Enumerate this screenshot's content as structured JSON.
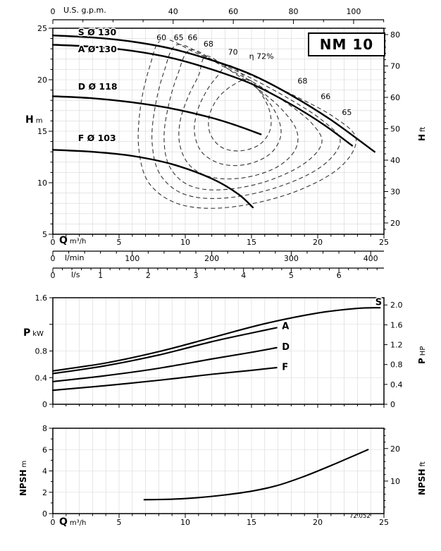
{
  "page": {
    "model": "NM 10",
    "code_note": "72.052"
  },
  "colors": {
    "curve": "#000000",
    "grid": "#d6d6d6",
    "contour": "#333333",
    "frame": "#000000"
  },
  "axis_titles": {
    "top_gpm": "U.S. g.p.m.",
    "h_left": {
      "sym": "H",
      "unit": "m"
    },
    "h_right": {
      "sym": "H",
      "unit": "ft"
    },
    "q_head": {
      "sym": "Q",
      "unit": "m³/h"
    },
    "lmin": "l/min",
    "ls": "l/s",
    "p_left": {
      "sym": "P",
      "unit": "kW"
    },
    "p_right": {
      "sym": "P",
      "unit": "HP"
    },
    "npsh_left": {
      "sym": "NPSH",
      "unit": "m"
    },
    "npsh_right": {
      "sym": "NPSH",
      "unit": "ft"
    },
    "q_npsh": {
      "sym": "Q",
      "unit": "m³/h"
    }
  },
  "chart_data": [
    {
      "id": "head",
      "type": "line",
      "title": "NM 10",
      "x_bottom": {
        "label": "Q m³/h",
        "range": [
          0,
          25
        ],
        "ticks": [
          0,
          5,
          10,
          15,
          20,
          25
        ]
      },
      "x_top": {
        "label": "U.S. g.p.m.",
        "ticks": [
          0,
          40,
          60,
          80,
          100
        ],
        "m3h_per_unit": 0.2271
      },
      "x_lmin": {
        "label": "l/min",
        "ticks": [
          0,
          100,
          200,
          300,
          400
        ],
        "m3h_per_unit": 0.06
      },
      "x_ls": {
        "label": "l/s",
        "ticks": [
          0,
          1,
          2,
          3,
          4,
          5,
          6
        ],
        "m3h_per_unit": 3.6
      },
      "y_left": {
        "label": "H m",
        "range": [
          5,
          25
        ],
        "ticks": [
          5,
          10,
          15,
          20,
          25
        ]
      },
      "y_right": {
        "label": "H ft",
        "ticks": [
          20,
          30,
          40,
          50,
          60,
          70,
          80
        ],
        "m_per_ft": 0.3048
      },
      "series": [
        {
          "name": "S",
          "label": "S Ø 130",
          "label_at": [
            1.9,
            24.6
          ],
          "points": [
            [
              0,
              24.3
            ],
            [
              3,
              24.1
            ],
            [
              6,
              23.7
            ],
            [
              9,
              23.0
            ],
            [
              12,
              21.9
            ],
            [
              15,
              20.5
            ],
            [
              18,
              18.5
            ],
            [
              21,
              16.1
            ],
            [
              24.3,
              13.0
            ]
          ]
        },
        {
          "name": "A",
          "label": "A Ø 130",
          "label_at": [
            1.9,
            22.95
          ],
          "points": [
            [
              0,
              23.4
            ],
            [
              3,
              23.2
            ],
            [
              6,
              22.8
            ],
            [
              9,
              22.1
            ],
            [
              12,
              21.0
            ],
            [
              15,
              19.6
            ],
            [
              18,
              17.6
            ],
            [
              20.5,
              15.6
            ],
            [
              22.6,
              13.6
            ]
          ]
        },
        {
          "name": "D",
          "label": "D Ø 118",
          "label_at": [
            1.9,
            19.3
          ],
          "points": [
            [
              0,
              18.4
            ],
            [
              3,
              18.2
            ],
            [
              6,
              17.8
            ],
            [
              9,
              17.2
            ],
            [
              12,
              16.3
            ],
            [
              14,
              15.5
            ],
            [
              15.7,
              14.7
            ]
          ]
        },
        {
          "name": "F",
          "label": "F Ø 103",
          "label_at": [
            1.9,
            14.3
          ],
          "points": [
            [
              0,
              13.2
            ],
            [
              3,
              13.0
            ],
            [
              6,
              12.6
            ],
            [
              9,
              11.8
            ],
            [
              12,
              10.4
            ],
            [
              14,
              8.9
            ],
            [
              15.1,
              7.6
            ]
          ]
        }
      ],
      "efficiency_contours": [
        {
          "eta": 60,
          "points": [
            [
              8.3,
              23.9
            ],
            [
              11.0,
              22.5
            ],
            [
              14.5,
              20.7
            ],
            [
              18.0,
              18.6
            ],
            [
              21.2,
              16.4
            ],
            [
              22.9,
              14.2
            ],
            [
              21.5,
              11.3
            ],
            [
              17.8,
              8.9
            ],
            [
              13.2,
              7.6
            ],
            [
              9.6,
              7.9
            ],
            [
              7.3,
              9.9
            ],
            [
              6.5,
              13.2
            ],
            [
              6.6,
              17.2
            ],
            [
              7.3,
              21.2
            ]
          ]
        },
        {
          "eta": 65,
          "points": [
            [
              9.4,
              23.4
            ],
            [
              11.9,
              22.0
            ],
            [
              14.9,
              20.2
            ],
            [
              17.9,
              18.1
            ],
            [
              20.4,
              16.0
            ],
            [
              21.7,
              14.0
            ],
            [
              20.2,
              11.5
            ],
            [
              16.8,
              9.5
            ],
            [
              12.9,
              8.5
            ],
            [
              9.9,
              8.9
            ],
            [
              8.1,
              10.8
            ],
            [
              7.5,
              13.8
            ],
            [
              7.7,
              17.2
            ],
            [
              8.4,
              20.8
            ]
          ]
        },
        {
          "eta": 66,
          "points": [
            [
              10.4,
              22.9
            ],
            [
              12.7,
              21.4
            ],
            [
              15.2,
              19.7
            ],
            [
              17.7,
              17.7
            ],
            [
              19.6,
              15.7
            ],
            [
              20.3,
              13.8
            ],
            [
              18.8,
              11.7
            ],
            [
              15.8,
              10.0
            ],
            [
              12.5,
              9.3
            ],
            [
              10.2,
              9.8
            ],
            [
              8.8,
              11.6
            ],
            [
              8.4,
              14.3
            ],
            [
              8.7,
              17.3
            ],
            [
              9.4,
              20.4
            ]
          ]
        },
        {
          "eta": 68,
          "points": [
            [
              11.6,
              22.3
            ],
            [
              13.5,
              20.8
            ],
            [
              15.6,
              19.0
            ],
            [
              17.3,
              17.1
            ],
            [
              18.4,
              15.1
            ],
            [
              18.3,
              13.2
            ],
            [
              16.9,
              11.5
            ],
            [
              14.5,
              10.5
            ],
            [
              12.1,
              10.5
            ],
            [
              10.4,
              11.6
            ],
            [
              9.6,
              13.6
            ],
            [
              9.6,
              15.9
            ],
            [
              10.2,
              18.3
            ],
            [
              11.0,
              20.4
            ]
          ]
        },
        {
          "eta": 70,
          "points": [
            [
              13.3,
              21.4
            ],
            [
              14.8,
              19.9
            ],
            [
              16.1,
              18.2
            ],
            [
              17.0,
              16.3
            ],
            [
              17.2,
              14.5
            ],
            [
              16.4,
              12.8
            ],
            [
              14.7,
              11.8
            ],
            [
              12.8,
              11.8
            ],
            [
              11.3,
              12.9
            ],
            [
              10.7,
              14.8
            ],
            [
              10.9,
              16.9
            ],
            [
              11.6,
              18.9
            ],
            [
              12.4,
              20.3
            ]
          ]
        },
        {
          "eta": 72,
          "points": [
            [
              14.8,
              20.0
            ],
            [
              15.8,
              18.5
            ],
            [
              16.4,
              16.8
            ],
            [
              16.4,
              15.1
            ],
            [
              15.6,
              13.7
            ],
            [
              14.2,
              13.1
            ],
            [
              12.8,
              13.4
            ],
            [
              11.9,
              14.7
            ],
            [
              11.8,
              16.4
            ],
            [
              12.4,
              18.1
            ],
            [
              13.5,
              19.4
            ]
          ]
        }
      ],
      "efficiency_labels": [
        {
          "text": "60",
          "at": [
            8.2,
            24.1
          ]
        },
        {
          "text": "65",
          "at": [
            9.5,
            24.1
          ]
        },
        {
          "text": "66",
          "at": [
            10.55,
            24.1
          ]
        },
        {
          "text": "68",
          "at": [
            11.75,
            23.5
          ]
        },
        {
          "text": "70",
          "at": [
            13.6,
            22.7
          ]
        },
        {
          "text": "η 72%",
          "at": [
            15.75,
            22.3
          ]
        },
        {
          "text": "68",
          "at": [
            18.85,
            19.9
          ]
        },
        {
          "text": "66",
          "at": [
            20.6,
            18.4
          ]
        },
        {
          "text": "65",
          "at": [
            22.2,
            16.85
          ]
        }
      ]
    },
    {
      "id": "power",
      "type": "line",
      "y_left": {
        "label": "P kW",
        "range": [
          0,
          1.6
        ],
        "ticks": [
          {
            "v": 0,
            "t": "0"
          },
          {
            "v": 0.4,
            "t": "0.4"
          },
          {
            "v": 0.8,
            "t": "0.8"
          },
          {
            "v": 1.6,
            "t": "1.6"
          }
        ]
      },
      "y_right": {
        "label": "P HP",
        "kw_per_hp": 0.7457,
        "ticks": [
          {
            "v": 0,
            "t": "0"
          },
          {
            "v": 0.4,
            "t": "0.4"
          },
          {
            "v": 0.8,
            "t": "0.8"
          },
          {
            "v": 1.2,
            "t": "1.2"
          },
          {
            "v": 1.6,
            "t": "1.6"
          },
          {
            "v": 2,
            "t": "2.0"
          }
        ]
      },
      "series": [
        {
          "name": "S",
          "label": "S",
          "label_at": [
            24.6,
            1.53
          ],
          "points": [
            [
              0,
              0.5
            ],
            [
              4,
              0.62
            ],
            [
              8,
              0.79
            ],
            [
              12,
              1.0
            ],
            [
              16,
              1.21
            ],
            [
              20,
              1.37
            ],
            [
              23,
              1.44
            ],
            [
              24.7,
              1.45
            ]
          ]
        },
        {
          "name": "A",
          "label": "A",
          "label_at": [
            17.3,
            1.17
          ],
          "points": [
            [
              0,
              0.46
            ],
            [
              4,
              0.58
            ],
            [
              8,
              0.74
            ],
            [
              12,
              0.94
            ],
            [
              15,
              1.07
            ],
            [
              16.9,
              1.15
            ]
          ]
        },
        {
          "name": "D",
          "label": "D",
          "label_at": [
            17.3,
            0.86
          ],
          "points": [
            [
              0,
              0.34
            ],
            [
              4,
              0.43
            ],
            [
              8,
              0.54
            ],
            [
              12,
              0.68
            ],
            [
              15,
              0.78
            ],
            [
              16.9,
              0.85
            ]
          ]
        },
        {
          "name": "F",
          "label": "F",
          "label_at": [
            17.3,
            0.555
          ],
          "points": [
            [
              0,
              0.21
            ],
            [
              4,
              0.28
            ],
            [
              8,
              0.36
            ],
            [
              12,
              0.45
            ],
            [
              15,
              0.51
            ],
            [
              16.9,
              0.55
            ]
          ]
        }
      ]
    },
    {
      "id": "npsh",
      "type": "line",
      "x_bottom": {
        "label": "Q m³/h",
        "range": [
          0,
          25
        ],
        "ticks": [
          0,
          5,
          10,
          15,
          20,
          25
        ]
      },
      "y_left": {
        "label": "NPSH m",
        "range": [
          0,
          8
        ],
        "ticks": [
          0,
          2,
          4,
          6,
          8
        ]
      },
      "y_right": {
        "label": "NPSH ft",
        "ticks": [
          10,
          20
        ],
        "m_per_ft": 0.3048
      },
      "series": [
        {
          "name": "NPSH",
          "points": [
            [
              6.9,
              1.3
            ],
            [
              9,
              1.35
            ],
            [
              11,
              1.5
            ],
            [
              13,
              1.75
            ],
            [
              15,
              2.1
            ],
            [
              17,
              2.65
            ],
            [
              19,
              3.5
            ],
            [
              21,
              4.5
            ],
            [
              22.5,
              5.3
            ],
            [
              23.8,
              6.0
            ]
          ]
        }
      ],
      "note": "72.052"
    }
  ]
}
